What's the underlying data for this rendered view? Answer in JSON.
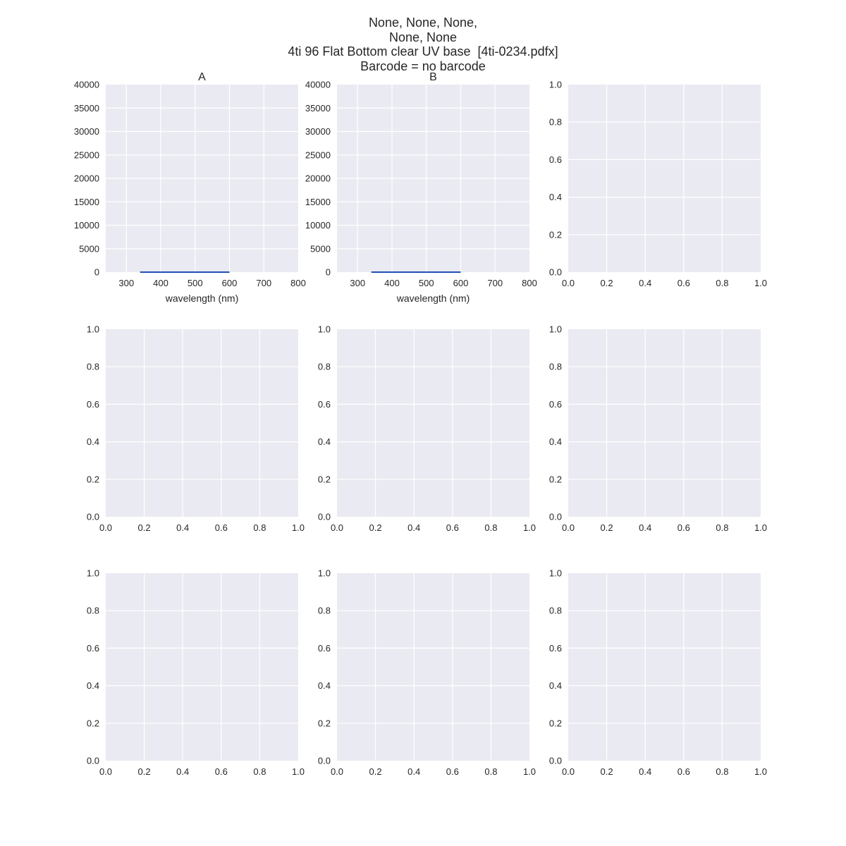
{
  "figure": {
    "title_lines": [
      "None, None, None,",
      "None, None",
      "4ti 96 Flat Bottom clear UV base  [4ti-0234.pdfx]",
      "Barcode = no barcode"
    ]
  },
  "colors": {
    "axes_background": "#eaeaf2",
    "grid": "#ffffff",
    "text": "#262626",
    "series_line": "#1f4fb4"
  },
  "chart_data": [
    {
      "type": "line",
      "title": "A",
      "xlabel": "wavelength (nm)",
      "ylabel": "",
      "xlim": [
        240,
        800
      ],
      "ylim": [
        0,
        40000
      ],
      "xticks": [
        300,
        400,
        500,
        600,
        700,
        800
      ],
      "yticks": [
        0,
        5000,
        10000,
        15000,
        20000,
        25000,
        30000,
        35000,
        40000
      ],
      "grid": true,
      "series": [
        {
          "x": [
            340,
            600
          ],
          "y": [
            0,
            0
          ]
        }
      ]
    },
    {
      "type": "line",
      "title": "B",
      "xlabel": "wavelength (nm)",
      "ylabel": "",
      "xlim": [
        240,
        800
      ],
      "ylim": [
        0,
        40000
      ],
      "xticks": [
        300,
        400,
        500,
        600,
        700,
        800
      ],
      "yticks": [
        0,
        5000,
        10000,
        15000,
        20000,
        25000,
        30000,
        35000,
        40000
      ],
      "grid": true,
      "series": [
        {
          "x": [
            340,
            600
          ],
          "y": [
            0,
            0
          ]
        }
      ]
    },
    {
      "type": "line",
      "title": "",
      "xlabel": "",
      "ylabel": "",
      "xlim": [
        0,
        1
      ],
      "ylim": [
        0,
        1
      ],
      "xticks": [
        0.0,
        0.2,
        0.4,
        0.6,
        0.8,
        1.0
      ],
      "yticks": [
        0.0,
        0.2,
        0.4,
        0.6,
        0.8,
        1.0
      ],
      "grid": true,
      "series": []
    },
    {
      "type": "line",
      "title": "",
      "xlabel": "",
      "ylabel": "",
      "xlim": [
        0,
        1
      ],
      "ylim": [
        0,
        1
      ],
      "xticks": [
        0.0,
        0.2,
        0.4,
        0.6,
        0.8,
        1.0
      ],
      "yticks": [
        0.0,
        0.2,
        0.4,
        0.6,
        0.8,
        1.0
      ],
      "grid": true,
      "series": []
    },
    {
      "type": "line",
      "title": "",
      "xlabel": "",
      "ylabel": "",
      "xlim": [
        0,
        1
      ],
      "ylim": [
        0,
        1
      ],
      "xticks": [
        0.0,
        0.2,
        0.4,
        0.6,
        0.8,
        1.0
      ],
      "yticks": [
        0.0,
        0.2,
        0.4,
        0.6,
        0.8,
        1.0
      ],
      "grid": true,
      "series": []
    },
    {
      "type": "line",
      "title": "",
      "xlabel": "",
      "ylabel": "",
      "xlim": [
        0,
        1
      ],
      "ylim": [
        0,
        1
      ],
      "xticks": [
        0.0,
        0.2,
        0.4,
        0.6,
        0.8,
        1.0
      ],
      "yticks": [
        0.0,
        0.2,
        0.4,
        0.6,
        0.8,
        1.0
      ],
      "grid": true,
      "series": []
    },
    {
      "type": "line",
      "title": "",
      "xlabel": "",
      "ylabel": "",
      "xlim": [
        0,
        1
      ],
      "ylim": [
        0,
        1
      ],
      "xticks": [
        0.0,
        0.2,
        0.4,
        0.6,
        0.8,
        1.0
      ],
      "yticks": [
        0.0,
        0.2,
        0.4,
        0.6,
        0.8,
        1.0
      ],
      "grid": true,
      "series": []
    },
    {
      "type": "line",
      "title": "",
      "xlabel": "",
      "ylabel": "",
      "xlim": [
        0,
        1
      ],
      "ylim": [
        0,
        1
      ],
      "xticks": [
        0.0,
        0.2,
        0.4,
        0.6,
        0.8,
        1.0
      ],
      "yticks": [
        0.0,
        0.2,
        0.4,
        0.6,
        0.8,
        1.0
      ],
      "grid": true,
      "series": []
    },
    {
      "type": "line",
      "title": "",
      "xlabel": "",
      "ylabel": "",
      "xlim": [
        0,
        1
      ],
      "ylim": [
        0,
        1
      ],
      "xticks": [
        0.0,
        0.2,
        0.4,
        0.6,
        0.8,
        1.0
      ],
      "yticks": [
        0.0,
        0.2,
        0.4,
        0.6,
        0.8,
        1.0
      ],
      "grid": true,
      "series": []
    }
  ]
}
